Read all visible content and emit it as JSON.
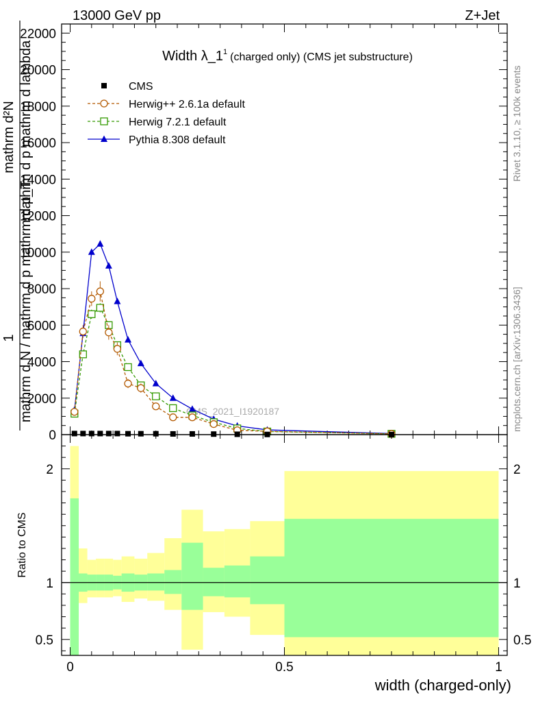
{
  "header": {
    "energy_label": "13000 GeV pp",
    "process_label": "Z+Jet"
  },
  "side_labels": {
    "rivet": "Rivet 3.1.10, ≥ 100k events",
    "mcplots": "mcplots.cern.ch [arXiv:1306.3436]"
  },
  "chart_data": [
    {
      "type": "line",
      "title": "Width λ_1",
      "title_superscript": "1",
      "subtitle": "(charged only) (CMS jet substructure)",
      "watermark": "CMS_2021_I1920187",
      "ylabel_parts": [
        "1",
        "mathrm d N / mathrm d p mathrm d p_T",
        "mathrm d²N",
        "mathrm d p mathrm d lambda"
      ],
      "xlim": [
        -0.02,
        1.02
      ],
      "ylim": [
        0,
        22500
      ],
      "y_ticks": [
        0,
        2000,
        4000,
        6000,
        8000,
        10000,
        12000,
        14000,
        16000,
        18000,
        20000,
        22000
      ],
      "y_tick_labels": [
        "0",
        "2000",
        "4000",
        "6000",
        "8000",
        "10000",
        "12000",
        "14000",
        "16000",
        "18000",
        "20000",
        "22000"
      ],
      "legend_position": "top-left",
      "series": [
        {
          "name": "CMS",
          "color": "#000000",
          "marker": "square-filled",
          "x": [
            0.01,
            0.03,
            0.05,
            0.07,
            0.09,
            0.11,
            0.135,
            0.165,
            0.2,
            0.24,
            0.285,
            0.335,
            0.39,
            0.46,
            0.75
          ],
          "y": [
            60,
            60,
            60,
            60,
            60,
            60,
            50,
            50,
            50,
            40,
            40,
            30,
            20,
            10,
            5
          ]
        },
        {
          "name": "Herwig++ 2.6.1a default",
          "color": "#b35900",
          "marker": "circle-open",
          "dash": "4,3",
          "x": [
            0.01,
            0.03,
            0.05,
            0.07,
            0.09,
            0.11,
            0.135,
            0.165,
            0.2,
            0.24,
            0.285,
            0.335,
            0.39,
            0.46,
            0.75
          ],
          "y": [
            1250,
            5650,
            7450,
            7850,
            5600,
            4700,
            2800,
            2550,
            1550,
            950,
            950,
            580,
            240,
            180,
            40
          ],
          "err": [
            150,
            350,
            400,
            550,
            400,
            350,
            250,
            250,
            150,
            100,
            100,
            70,
            40,
            30,
            10
          ]
        },
        {
          "name": "Herwig 7.2.1 default",
          "color": "#339900",
          "marker": "square-open",
          "dash": "4,3",
          "x": [
            0.01,
            0.03,
            0.05,
            0.07,
            0.09,
            0.11,
            0.135,
            0.165,
            0.2,
            0.24,
            0.285,
            0.335,
            0.39,
            0.46,
            0.75
          ],
          "y": [
            1150,
            4400,
            6600,
            6950,
            6000,
            4900,
            3700,
            2700,
            2100,
            1450,
            1050,
            680,
            340,
            170,
            45
          ],
          "err": [
            100,
            200,
            250,
            250,
            200,
            180,
            150,
            120,
            100,
            80,
            60,
            40,
            30,
            20,
            10
          ]
        },
        {
          "name": "Pythia 8.308 default",
          "color": "#0000cc",
          "marker": "triangle-filled",
          "x": [
            0.01,
            0.03,
            0.05,
            0.07,
            0.09,
            0.11,
            0.135,
            0.165,
            0.2,
            0.24,
            0.285,
            0.335,
            0.39,
            0.46,
            0.75
          ],
          "y": [
            1350,
            5550,
            10000,
            10450,
            9250,
            7300,
            5200,
            3900,
            2800,
            2000,
            1400,
            850,
            480,
            260,
            60
          ]
        }
      ]
    },
    {
      "type": "area",
      "ylabel": "Ratio to CMS",
      "xlabel": "width (charged-only)",
      "xlim": [
        -0.02,
        1.02
      ],
      "ylim": [
        0.36,
        2.3
      ],
      "x_ticks": [
        0,
        0.5,
        1
      ],
      "x_tick_labels": [
        "0",
        "0.5",
        "1"
      ],
      "y_ticks": [
        0.5,
        1,
        2
      ],
      "y_tick_labels": [
        "0.5",
        "1",
        "2"
      ],
      "reference_line": 1,
      "band_colors": {
        "stat": "#99ff99",
        "total": "#ffff99"
      },
      "bins": [
        {
          "x0": 0.0,
          "x1": 0.02,
          "g_lo": 0.36,
          "g_hi": 1.74,
          "y_lo": 0.36,
          "y_hi": 2.2
        },
        {
          "x0": 0.02,
          "x1": 0.04,
          "g_lo": 0.92,
          "g_hi": 1.08,
          "y_lo": 0.82,
          "y_hi": 1.3
        },
        {
          "x0": 0.04,
          "x1": 0.06,
          "g_lo": 0.93,
          "g_hi": 1.07,
          "y_lo": 0.87,
          "y_hi": 1.2
        },
        {
          "x0": 0.06,
          "x1": 0.08,
          "g_lo": 0.93,
          "g_hi": 1.07,
          "y_lo": 0.87,
          "y_hi": 1.21
        },
        {
          "x0": 0.08,
          "x1": 0.1,
          "g_lo": 0.93,
          "g_hi": 1.07,
          "y_lo": 0.87,
          "y_hi": 1.21
        },
        {
          "x0": 0.1,
          "x1": 0.12,
          "g_lo": 0.94,
          "g_hi": 1.06,
          "y_lo": 0.88,
          "y_hi": 1.2
        },
        {
          "x0": 0.12,
          "x1": 0.15,
          "g_lo": 0.92,
          "g_hi": 1.08,
          "y_lo": 0.83,
          "y_hi": 1.23
        },
        {
          "x0": 0.15,
          "x1": 0.18,
          "g_lo": 0.93,
          "g_hi": 1.07,
          "y_lo": 0.86,
          "y_hi": 1.21
        },
        {
          "x0": 0.18,
          "x1": 0.22,
          "g_lo": 0.93,
          "g_hi": 1.08,
          "y_lo": 0.84,
          "y_hi": 1.26
        },
        {
          "x0": 0.22,
          "x1": 0.26,
          "g_lo": 0.9,
          "g_hi": 1.11,
          "y_lo": 0.76,
          "y_hi": 1.39
        },
        {
          "x0": 0.26,
          "x1": 0.31,
          "g_lo": 0.76,
          "g_hi": 1.35,
          "y_lo": 0.41,
          "y_hi": 1.64
        },
        {
          "x0": 0.31,
          "x1": 0.36,
          "g_lo": 0.88,
          "g_hi": 1.13,
          "y_lo": 0.74,
          "y_hi": 1.45
        },
        {
          "x0": 0.36,
          "x1": 0.42,
          "g_lo": 0.87,
          "g_hi": 1.15,
          "y_lo": 0.7,
          "y_hi": 1.47
        },
        {
          "x0": 0.42,
          "x1": 0.5,
          "g_lo": 0.81,
          "g_hi": 1.23,
          "y_lo": 0.54,
          "y_hi": 1.54
        },
        {
          "x0": 0.5,
          "x1": 1.0,
          "g_lo": 0.52,
          "g_hi": 1.56,
          "y_lo": 0.36,
          "y_hi": 1.98
        }
      ]
    }
  ]
}
